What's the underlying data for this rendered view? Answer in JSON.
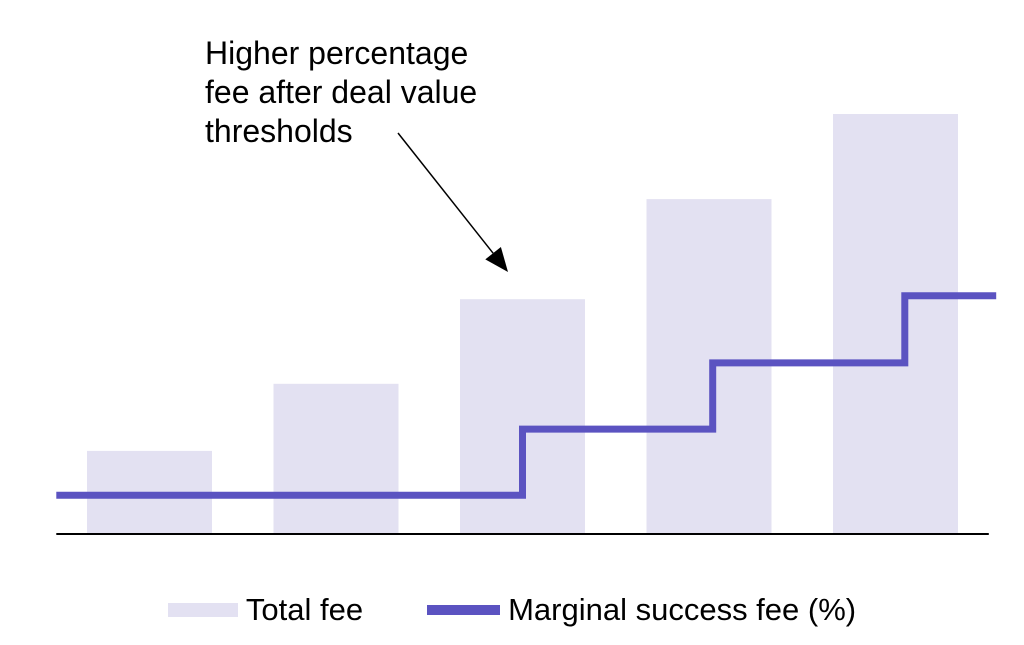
{
  "annotation": {
    "text": "Higher percentage fee after deal value thresholds",
    "arrow": {
      "from": [
        398,
        133
      ],
      "to": [
        508,
        272
      ]
    }
  },
  "legend": {
    "items": [
      {
        "label": "Total fee",
        "swatch": "bar"
      },
      {
        "label": "Marginal success fee (%)",
        "swatch": "line"
      }
    ]
  },
  "colors": {
    "bar_fill": "#E3E1F2",
    "line": "#5B53C1",
    "axis": "#000000",
    "text": "#000000",
    "arrow": "#000000"
  },
  "chart_data": {
    "type": "combo",
    "title": "",
    "xlabel": "",
    "ylabel": "",
    "axes": {
      "x_axis_visible": true,
      "y_axis_visible": false,
      "gridlines": false,
      "tick_labels": false,
      "x_span_units": [
        0.5,
        5.5
      ]
    },
    "legend_position": "bottom",
    "series": [
      {
        "name": "Total fee",
        "type": "bar",
        "x": [
          1,
          2,
          3,
          4,
          5
        ],
        "values_pct_of_max": [
          19.6,
          35.6,
          55.8,
          79.7,
          100
        ]
      },
      {
        "name": "Marginal success fee (%)",
        "type": "step-line",
        "comment_units": "points are [x in bar-index units, level in % of max bar height]; steps occur at bar centers 3, 4 and 5",
        "points": [
          [
            0.5,
            9.0
          ],
          [
            3.0,
            9.0
          ],
          [
            3.0,
            24.8
          ],
          [
            4.02,
            24.8
          ],
          [
            4.02,
            40.6
          ],
          [
            5.05,
            40.6
          ],
          [
            5.05,
            56.6
          ],
          [
            5.54,
            56.6
          ]
        ]
      }
    ]
  }
}
